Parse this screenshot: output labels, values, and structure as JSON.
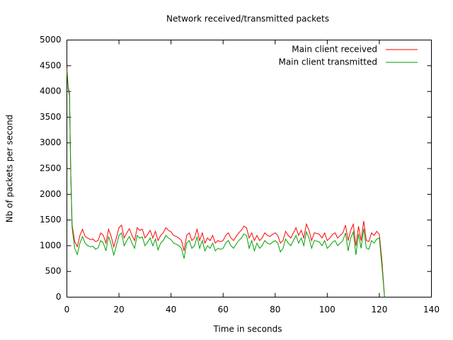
{
  "chart_data": {
    "type": "line",
    "title": "Network received/transmitted packets",
    "xlabel": "Time in seconds",
    "ylabel": "Nb of packets per second",
    "legend": "top-right",
    "xlim": [
      0,
      140
    ],
    "xticks": [
      0,
      20,
      40,
      60,
      80,
      100,
      120,
      140
    ],
    "ylim": [
      0,
      5000
    ],
    "yticks": [
      0,
      500,
      1000,
      1500,
      2000,
      2500,
      3000,
      3500,
      4000,
      4500,
      5000
    ],
    "x": [
      0,
      0.5,
      1,
      1.5,
      2,
      3,
      4,
      5,
      6,
      7,
      8,
      9,
      10,
      11,
      12,
      13,
      14,
      15,
      16,
      17,
      18,
      19,
      20,
      21,
      22,
      23,
      24,
      25,
      26,
      27,
      28,
      29,
      30,
      31,
      32,
      33,
      34,
      35,
      36,
      37,
      38,
      39,
      40,
      41,
      42,
      43,
      44,
      45,
      46,
      47,
      48,
      49,
      50,
      51,
      52,
      53,
      54,
      55,
      56,
      57,
      58,
      59,
      60,
      61,
      62,
      63,
      64,
      65,
      66,
      67,
      68,
      69,
      70,
      71,
      72,
      73,
      74,
      75,
      76,
      77,
      78,
      79,
      80,
      81,
      82,
      83,
      84,
      85,
      86,
      87,
      88,
      89,
      90,
      91,
      92,
      93,
      94,
      95,
      96,
      97,
      98,
      99,
      100,
      101,
      102,
      103,
      104,
      105,
      106,
      107,
      108,
      109,
      110,
      111,
      112,
      113,
      114,
      115,
      116,
      117,
      118,
      119,
      120,
      121,
      122
    ],
    "series": [
      {
        "name": "Main client received",
        "color": "#ff0000",
        "values": [
          4450,
          4100,
          3950,
          2400,
          1400,
          1080,
          980,
          1200,
          1320,
          1180,
          1150,
          1120,
          1130,
          1080,
          1100,
          1250,
          1200,
          1050,
          1320,
          1180,
          980,
          1150,
          1350,
          1400,
          1150,
          1250,
          1330,
          1200,
          1100,
          1350,
          1300,
          1320,
          1150,
          1220,
          1300,
          1150,
          1280,
          1100,
          1200,
          1250,
          1350,
          1300,
          1270,
          1200,
          1180,
          1150,
          1100,
          900,
          1200,
          1250,
          1100,
          1150,
          1320,
          1100,
          1250,
          1050,
          1150,
          1100,
          1200,
          1050,
          1100,
          1080,
          1100,
          1200,
          1250,
          1150,
          1100,
          1180,
          1250,
          1300,
          1380,
          1350,
          1150,
          1250,
          1100,
          1200,
          1100,
          1150,
          1250,
          1200,
          1180,
          1220,
          1250,
          1200,
          1050,
          1100,
          1280,
          1200,
          1150,
          1250,
          1350,
          1200,
          1300,
          1150,
          1420,
          1300,
          1100,
          1250,
          1240,
          1220,
          1150,
          1250,
          1100,
          1150,
          1220,
          1250,
          1150,
          1200,
          1250,
          1400,
          1100,
          1300,
          1420,
          1000,
          1380,
          1100,
          1480,
          1100,
          1080,
          1250,
          1200,
          1280,
          1220,
          700,
          0
        ]
      },
      {
        "name": "Main client transmitted",
        "color": "#00a000",
        "values": [
          4400,
          4050,
          3900,
          2350,
          1350,
          950,
          830,
          1050,
          1180,
          1050,
          1000,
          980,
          990,
          930,
          960,
          1100,
          1050,
          900,
          1180,
          1030,
          820,
          1000,
          1200,
          1250,
          1000,
          1100,
          1180,
          1050,
          950,
          1200,
          1150,
          1170,
          1000,
          1070,
          1150,
          1000,
          1130,
          920,
          1050,
          1100,
          1200,
          1150,
          1120,
          1050,
          1030,
          1000,
          950,
          750,
          1050,
          1100,
          950,
          1000,
          1170,
          950,
          1100,
          900,
          1000,
          950,
          1050,
          900,
          950,
          930,
          950,
          1050,
          1100,
          1000,
          950,
          1030,
          1100,
          1150,
          1230,
          1200,
          950,
          1100,
          900,
          1050,
          950,
          1000,
          1100,
          1050,
          1030,
          1070,
          1100,
          1050,
          880,
          950,
          1130,
          1050,
          1000,
          1100,
          1200,
          1050,
          1150,
          1000,
          1270,
          1150,
          950,
          1100,
          1090,
          1070,
          1000,
          1100,
          950,
          1000,
          1070,
          1100,
          1000,
          1050,
          1100,
          1250,
          900,
          1150,
          1270,
          820,
          1230,
          950,
          1330,
          950,
          930,
          1100,
          1050,
          1130,
          1150,
          600,
          0
        ]
      }
    ]
  }
}
